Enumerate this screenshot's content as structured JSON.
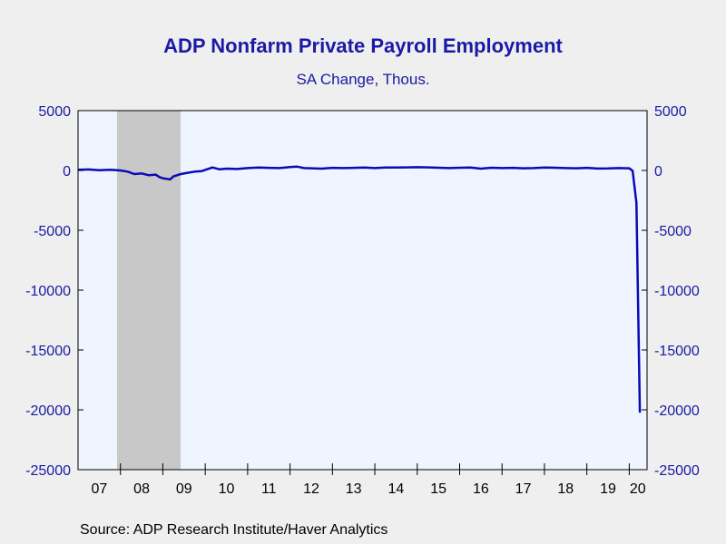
{
  "chart_data": {
    "type": "line",
    "title": "ADP Nonfarm Private Payroll Employment",
    "subtitle": "SA Change, Thous.",
    "source": "Source:  ADP Research Institute/Haver Analytics",
    "ylim": [
      -25000,
      5000
    ],
    "yticks": [
      5000,
      0,
      -5000,
      -10000,
      -15000,
      -20000,
      -25000
    ],
    "ytick_labels": [
      "5000",
      "0",
      "-5000",
      "-10000",
      "-15000",
      "-20000",
      "-25000"
    ],
    "xlim": [
      2007.0,
      2020.42
    ],
    "xtick_labels": [
      "07",
      "08",
      "09",
      "10",
      "11",
      "12",
      "13",
      "14",
      "15",
      "16",
      "17",
      "18",
      "19",
      "20"
    ],
    "xtick_positions": [
      2007.5,
      2008.5,
      2009.5,
      2010.5,
      2011.5,
      2012.5,
      2013.5,
      2014.5,
      2015.5,
      2016.5,
      2017.5,
      2018.5,
      2019.5,
      2020.2
    ],
    "recession_shading": [
      2007.92,
      2009.42
    ],
    "grid": false,
    "line_color": "#0a0ab4",
    "label_color": "#1a1aa6",
    "series": [
      {
        "x": [
          2007.0,
          2007.25,
          2007.5,
          2007.75,
          2008.0,
          2008.17,
          2008.33,
          2008.5,
          2008.67,
          2008.83,
          2008.92,
          2009.0,
          2009.08,
          2009.17,
          2009.25,
          2009.42,
          2009.58,
          2009.75,
          2009.92,
          2010.17,
          2010.33,
          2010.5,
          2010.75,
          2011.0,
          2011.25,
          2011.5,
          2011.75,
          2012.0,
          2012.17,
          2012.33,
          2012.5,
          2012.75,
          2013.0,
          2013.25,
          2013.5,
          2013.75,
          2014.0,
          2014.25,
          2014.5,
          2014.75,
          2015.0,
          2015.25,
          2015.5,
          2015.75,
          2016.0,
          2016.25,
          2016.5,
          2016.75,
          2017.0,
          2017.25,
          2017.5,
          2017.75,
          2018.0,
          2018.25,
          2018.5,
          2018.75,
          2019.0,
          2019.25,
          2019.5,
          2019.75,
          2020.0,
          2020.08,
          2020.17,
          2020.25
        ],
        "values": [
          50,
          80,
          20,
          60,
          0,
          -100,
          -300,
          -250,
          -400,
          -350,
          -550,
          -650,
          -700,
          -750,
          -500,
          -300,
          -200,
          -100,
          -50,
          250,
          100,
          150,
          120,
          200,
          250,
          220,
          200,
          280,
          320,
          200,
          180,
          150,
          220,
          200,
          220,
          240,
          200,
          250,
          240,
          260,
          270,
          260,
          230,
          200,
          230,
          250,
          150,
          230,
          200,
          220,
          180,
          200,
          240,
          230,
          200,
          180,
          220,
          160,
          170,
          200,
          180,
          -30,
          -2700,
          -20236
        ]
      }
    ]
  }
}
